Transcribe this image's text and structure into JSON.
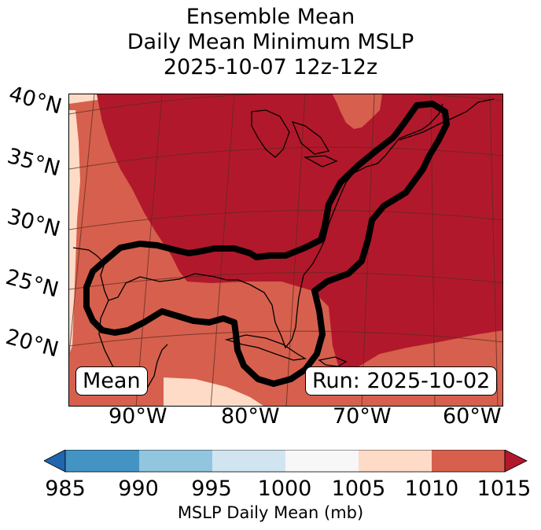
{
  "title": {
    "line1": "Ensemble Mean",
    "line2": "Daily Mean Minimum MSLP",
    "line3": "2025-10-07 12z-12z"
  },
  "map": {
    "lat_labels": [
      "40°N",
      "35°N",
      "30°N",
      "25°N",
      "20°N"
    ],
    "lon_labels": [
      "90°W",
      "80°W",
      "70°W",
      "60°W"
    ],
    "mean_label": "Mean",
    "run_label": "Run: 2025-10-02"
  },
  "colorbar": {
    "label": "MSLP Daily Mean (mb)",
    "ticks": [
      "985",
      "990",
      "995",
      "1000",
      "1005",
      "1010",
      "1015"
    ],
    "colors": {
      "under": "#2166ac",
      "b985_990": "#4393c3",
      "b990_995": "#92c5de",
      "b995_1000": "#d1e5f0",
      "b1000_1005": "#f7f7f7",
      "b1005_1010": "#fddbc7",
      "b1010_1015": "#d6604d",
      "over": "#b2182b"
    }
  }
}
